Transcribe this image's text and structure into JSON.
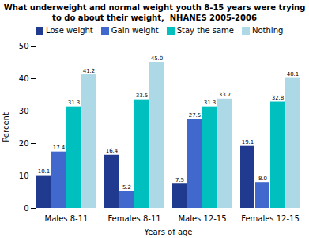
{
  "chart_data": {
    "type": "bar",
    "title": "What underweight and normal weight youth 8-15 years were trying\nto do about their weight,  NHANES 2005-2006",
    "categories": [
      "Males 8-11",
      "Females 8-11",
      "Males 12-15",
      "Females 12-15"
    ],
    "series": [
      {
        "name": "Lose weight",
        "color": "#1F3A8F",
        "values": [
          10.1,
          16.4,
          7.5,
          19.1
        ],
        "value_labels": [
          "10.1",
          "16.4",
          "7.5",
          "19.1"
        ]
      },
      {
        "name": "Gain weight",
        "color": "#4169CD",
        "values": [
          17.4,
          5.2,
          27.5,
          8.0
        ],
        "value_labels": [
          "17.4",
          "5.2",
          "27.5",
          "8.0"
        ]
      },
      {
        "name": "Stay the same",
        "color": "#00BFBF",
        "values": [
          31.3,
          33.5,
          31.3,
          32.8
        ],
        "value_labels": [
          "31.3",
          "33.5",
          "31.3",
          "32.8"
        ]
      },
      {
        "name": "Nothing",
        "color": "#ADD8E6",
        "values": [
          41.2,
          45.0,
          33.7,
          40.1
        ],
        "value_labels": [
          "41.2",
          "45.0",
          "33.7",
          "40.1"
        ]
      }
    ],
    "xlabel": "Years of age",
    "ylabel": "Percent",
    "ylim": [
      0,
      50
    ],
    "yticks": [
      0,
      10,
      20,
      30,
      40,
      50
    ],
    "grid": false,
    "legend": "upper left",
    "data_labels": true
  }
}
